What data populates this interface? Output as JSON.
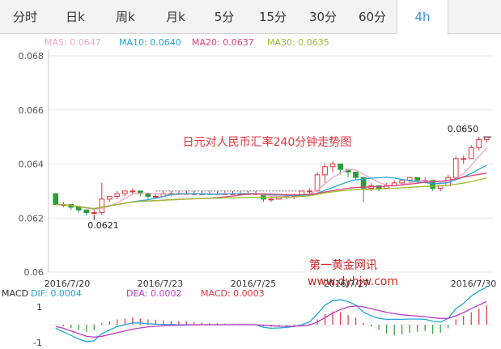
{
  "tabs": [
    {
      "label": "分时"
    },
    {
      "label": "日k"
    },
    {
      "label": "周k"
    },
    {
      "label": "月k"
    },
    {
      "label": "5分"
    },
    {
      "label": "15分"
    },
    {
      "label": "30分"
    },
    {
      "label": "60分"
    },
    {
      "label": "4h"
    }
  ],
  "active_tab": "4h",
  "ma_legend": [
    {
      "label": "MA5: 0.0647",
      "color": "#f4a6c6"
    },
    {
      "label": "MA10: 0.0640",
      "color": "#1fa7d8"
    },
    {
      "label": "MA20: 0.0637",
      "color": "#e0407e"
    },
    {
      "label": "MA30: 0.0635",
      "color": "#9bbd2a"
    }
  ],
  "watermark": {
    "line1": "第一黄金网讯",
    "line2": "www.dyhjw.com"
  },
  "macd_legend": {
    "title": "MACD",
    "dif": "DIF: 0.0004",
    "dea": "DEA: 0.0002",
    "macd": "MACD: 0.0003"
  },
  "colors": {
    "up": "#e8323c",
    "down": "#2a9d3a",
    "dif": "#1fa7d8",
    "dea": "#c03ac0"
  },
  "chart_data": {
    "type": "candlestick",
    "title": "日元对人民币汇率240分钟走势图",
    "ylim": [
      0.06,
      0.068
    ],
    "yticks": [
      "0.068",
      "0.066",
      "0.064",
      "0.062",
      "0.06"
    ],
    "ytick_values": [
      0.068,
      0.066,
      0.064,
      0.062,
      0.06
    ],
    "x_tick_labels": [
      "2016/7/20",
      "2016/7/23",
      "2016/7/25",
      "2016/7/27",
      "2016/7/30"
    ],
    "annotations": [
      "0.0621",
      "0.0650"
    ],
    "candles": [
      [
        0.0629,
        0.0629,
        0.0625,
        0.0625
      ],
      [
        0.0625,
        0.0626,
        0.0624,
        0.0625
      ],
      [
        0.0625,
        0.0625,
        0.0623,
        0.0624
      ],
      [
        0.0624,
        0.0624,
        0.0622,
        0.0623
      ],
      [
        0.0623,
        0.0623,
        0.0621,
        0.0622
      ],
      [
        0.0622,
        0.0623,
        0.0621,
        0.0622
      ],
      [
        0.0622,
        0.0633,
        0.0621,
        0.0627
      ],
      [
        0.0627,
        0.0628,
        0.0626,
        0.0628
      ],
      [
        0.0628,
        0.063,
        0.0627,
        0.0629
      ],
      [
        0.0629,
        0.063,
        0.0628,
        0.063
      ],
      [
        0.063,
        0.0631,
        0.0629,
        0.063
      ],
      [
        0.063,
        0.063,
        0.0628,
        0.0629
      ],
      [
        0.0629,
        0.0629,
        0.0627,
        0.0628
      ],
      [
        0.0628,
        0.0629,
        0.0627,
        0.0628
      ],
      [
        0.0628,
        0.063,
        0.0628,
        0.0629
      ],
      [
        0.0629,
        0.063,
        0.0628,
        0.0629
      ],
      [
        0.0629,
        0.063,
        0.0629,
        0.0629
      ],
      [
        0.0629,
        0.063,
        0.0629,
        0.0629
      ],
      [
        0.0629,
        0.063,
        0.0629,
        0.0629
      ],
      [
        0.0629,
        0.063,
        0.0629,
        0.0629
      ],
      [
        0.0629,
        0.063,
        0.0629,
        0.0629
      ],
      [
        0.0629,
        0.063,
        0.0629,
        0.0629
      ],
      [
        0.0629,
        0.063,
        0.0629,
        0.0629
      ],
      [
        0.0629,
        0.063,
        0.0629,
        0.0629
      ],
      [
        0.0629,
        0.063,
        0.0629,
        0.0629
      ],
      [
        0.0629,
        0.063,
        0.0629,
        0.0629
      ],
      [
        0.0629,
        0.063,
        0.0629,
        0.0629
      ],
      [
        0.0629,
        0.0629,
        0.0626,
        0.0627
      ],
      [
        0.0627,
        0.0628,
        0.0626,
        0.0627
      ],
      [
        0.0627,
        0.0628,
        0.0627,
        0.0628
      ],
      [
        0.0628,
        0.0629,
        0.0627,
        0.0628
      ],
      [
        0.0628,
        0.0629,
        0.0627,
        0.0628
      ],
      [
        0.0628,
        0.063,
        0.0628,
        0.063
      ],
      [
        0.063,
        0.0631,
        0.0629,
        0.063
      ],
      [
        0.063,
        0.0637,
        0.063,
        0.0636
      ],
      [
        0.0636,
        0.064,
        0.0633,
        0.0639
      ],
      [
        0.0639,
        0.0641,
        0.0637,
        0.064
      ],
      [
        0.064,
        0.064,
        0.0636,
        0.0638
      ],
      [
        0.0638,
        0.0638,
        0.0635,
        0.0637
      ],
      [
        0.0637,
        0.0637,
        0.0634,
        0.0635
      ],
      [
        0.0635,
        0.0635,
        0.0626,
        0.0631
      ],
      [
        0.0631,
        0.0633,
        0.063,
        0.0632
      ],
      [
        0.0632,
        0.0632,
        0.063,
        0.0631
      ],
      [
        0.0631,
        0.0633,
        0.0631,
        0.0632
      ],
      [
        0.0632,
        0.0634,
        0.0632,
        0.0633
      ],
      [
        0.0633,
        0.0634,
        0.0632,
        0.0634
      ],
      [
        0.0634,
        0.0635,
        0.0633,
        0.0635
      ],
      [
        0.0635,
        0.0635,
        0.0633,
        0.0634
      ],
      [
        0.0634,
        0.0635,
        0.0633,
        0.0634
      ],
      [
        0.0634,
        0.0634,
        0.063,
        0.0631
      ],
      [
        0.0631,
        0.0632,
        0.063,
        0.0632
      ],
      [
        0.0632,
        0.0636,
        0.0632,
        0.0635
      ],
      [
        0.0635,
        0.0643,
        0.0635,
        0.0642
      ],
      [
        0.0642,
        0.0643,
        0.064,
        0.0642
      ],
      [
        0.0642,
        0.0647,
        0.0642,
        0.0646
      ],
      [
        0.0646,
        0.065,
        0.0645,
        0.0649
      ],
      [
        0.0649,
        0.065,
        0.0648,
        0.065
      ]
    ],
    "macd_ylim": [
      -1.5,
      1.5
    ],
    "macd_yticks": [
      "1",
      "-1"
    ],
    "macd_ytick_values": [
      1,
      -1
    ],
    "macd_hist": [
      0,
      -0.1,
      -0.2,
      -0.3,
      -0.4,
      -0.3,
      0.1,
      0.2,
      0.3,
      0.35,
      0.4,
      0.35,
      0.3,
      0.28,
      0.25,
      0.22,
      0.2,
      0.18,
      0.15,
      0.12,
      0.1,
      0.08,
      0.06,
      0.04,
      0.03,
      0.02,
      0.01,
      -0.1,
      -0.12,
      -0.1,
      -0.08,
      -0.05,
      0,
      0.05,
      0.3,
      0.6,
      0.75,
      0.7,
      0.55,
      0.4,
      0.1,
      -0.1,
      -0.3,
      -0.5,
      -0.6,
      -0.55,
      -0.45,
      -0.4,
      -0.35,
      -0.5,
      -0.45,
      -0.2,
      0.3,
      0.5,
      0.7,
      0.9,
      1.1
    ],
    "dif": [
      -0.2,
      -0.4,
      -0.6,
      -0.8,
      -0.95,
      -0.9,
      -0.5,
      -0.3,
      -0.1,
      0.0,
      0.1,
      0.1,
      0.05,
      0.03,
      0.02,
      0.01,
      0.0,
      0.0,
      0.0,
      0.0,
      0.0,
      0.0,
      0.0,
      0.0,
      0.0,
      0.0,
      0.0,
      -0.15,
      -0.2,
      -0.18,
      -0.15,
      -0.1,
      0.0,
      0.15,
      0.6,
      1.1,
      1.35,
      1.4,
      1.3,
      1.1,
      0.7,
      0.5,
      0.35,
      0.3,
      0.3,
      0.3,
      0.32,
      0.32,
      0.3,
      0.2,
      0.15,
      0.35,
      0.9,
      1.2,
      1.6,
      1.9,
      2.1
    ],
    "dea": [
      -0.1,
      -0.2,
      -0.35,
      -0.5,
      -0.65,
      -0.7,
      -0.65,
      -0.55,
      -0.45,
      -0.35,
      -0.25,
      -0.18,
      -0.12,
      -0.09,
      -0.06,
      -0.04,
      -0.03,
      -0.02,
      -0.01,
      0.0,
      0.0,
      0.0,
      0.0,
      0.0,
      0.0,
      0.0,
      0.0,
      -0.03,
      -0.06,
      -0.08,
      -0.09,
      -0.08,
      -0.06,
      -0.02,
      0.15,
      0.4,
      0.65,
      0.85,
      1.0,
      1.05,
      1.0,
      0.9,
      0.8,
      0.7,
      0.62,
      0.56,
      0.52,
      0.48,
      0.45,
      0.4,
      0.35,
      0.35,
      0.5,
      0.68,
      0.9,
      1.1,
      1.3
    ]
  }
}
